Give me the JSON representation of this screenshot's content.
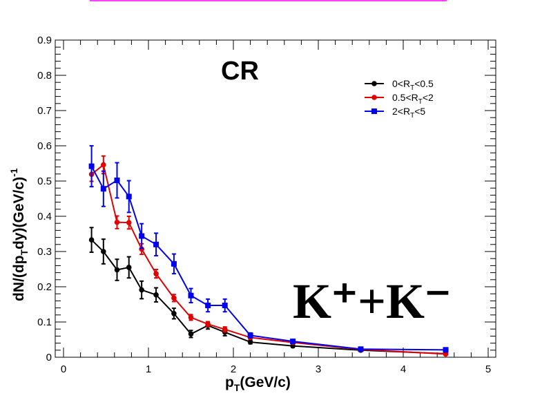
{
  "chart_data": {
    "type": "line",
    "xlabel": "p_T(GeV/c)",
    "ylabel": "dN/(dp_T dy)(GeV/c)^-1",
    "xlim": [
      0,
      5
    ],
    "ylim": [
      0,
      0.9
    ],
    "x_ticks": [
      "0",
      "1",
      "2",
      "3",
      "4",
      "5"
    ],
    "y_ticks": [
      "0",
      "0.1",
      "0.2",
      "0.3",
      "0.4",
      "0.5",
      "0.6",
      "0.7",
      "0.8",
      "0.9"
    ],
    "legend_placement": "top-right",
    "annotations": {
      "region": "CR",
      "particle": "K⁺+K⁻"
    },
    "series": [
      {
        "name": "0<R_T<0.5",
        "color": "#000000",
        "marker": "circle",
        "x": [
          0.33,
          0.47,
          0.63,
          0.77,
          0.92,
          1.09,
          1.3,
          1.5,
          1.7,
          1.9,
          2.2,
          2.7,
          3.5,
          4.5
        ],
        "y": [
          0.333,
          0.3,
          0.248,
          0.255,
          0.191,
          0.177,
          0.124,
          0.066,
          0.09,
          0.071,
          0.043,
          0.032,
          0.02,
          0.01
        ],
        "err": [
          0.035,
          0.035,
          0.03,
          0.03,
          0.025,
          0.02,
          0.015,
          0.01,
          0.01,
          0.01,
          0.005,
          0.004,
          0.003,
          0.002
        ]
      },
      {
        "name": "0.5<R_T<2",
        "color": "#e00000",
        "marker": "circle",
        "x": [
          0.33,
          0.47,
          0.63,
          0.77,
          0.92,
          1.09,
          1.3,
          1.5,
          1.7,
          1.9,
          2.2,
          2.7,
          3.5,
          4.5
        ],
        "y": [
          0.519,
          0.546,
          0.383,
          0.382,
          0.307,
          0.237,
          0.168,
          0.113,
          0.094,
          0.079,
          0.056,
          0.042,
          0.022,
          0.009
        ],
        "err": [
          0.02,
          0.025,
          0.018,
          0.018,
          0.015,
          0.012,
          0.01,
          0.008,
          0.007,
          0.007,
          0.004,
          0.004,
          0.003,
          0.002
        ]
      },
      {
        "name": "2<R_T<5",
        "color": "#0000ee",
        "marker": "square",
        "x": [
          0.33,
          0.47,
          0.63,
          0.77,
          0.92,
          1.09,
          1.3,
          1.5,
          1.7,
          1.9,
          2.2,
          2.7,
          3.5,
          4.5
        ],
        "y": [
          0.542,
          0.478,
          0.502,
          0.456,
          0.344,
          0.32,
          0.265,
          0.175,
          0.147,
          0.147,
          0.062,
          0.045,
          0.023,
          0.021
        ],
        "err": [
          0.058,
          0.05,
          0.05,
          0.045,
          0.035,
          0.032,
          0.028,
          0.02,
          0.018,
          0.018,
          0.007,
          0.005,
          0.003,
          0.003
        ]
      }
    ]
  }
}
